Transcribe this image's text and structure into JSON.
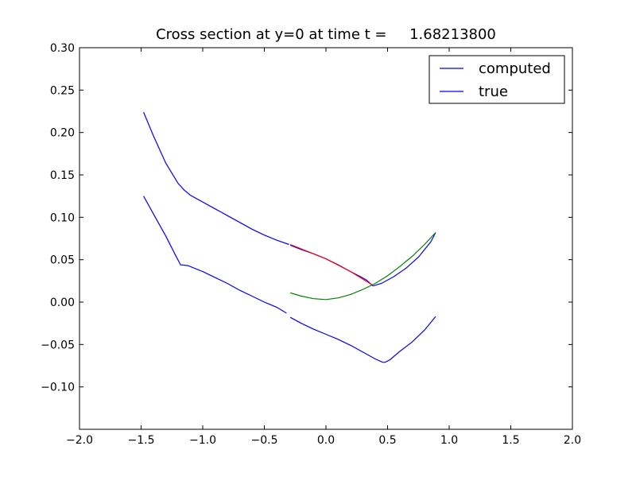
{
  "chart_data": {
    "type": "line",
    "title": "Cross section at y=0 at time t =     1.68213800",
    "xlabel": "",
    "ylabel": "",
    "xlim": [
      -2.0,
      2.0
    ],
    "ylim": [
      -0.15,
      0.3
    ],
    "xticks": [
      "−2.0",
      "−1.5",
      "−1.0",
      "−0.5",
      "0.0",
      "0.5",
      "1.0",
      "1.5",
      "2.0"
    ],
    "xtick_values": [
      -2.0,
      -1.5,
      -1.0,
      -0.5,
      0.0,
      0.5,
      1.0,
      1.5,
      2.0
    ],
    "yticks": [
      "0.30",
      "0.25",
      "0.20",
      "0.15",
      "0.10",
      "0.05",
      "0.00",
      "−0.05",
      "−0.10"
    ],
    "ytick_values": [
      0.3,
      0.25,
      0.2,
      0.15,
      0.1,
      0.05,
      0.0,
      -0.05,
      -0.1
    ],
    "grid": false,
    "legend_position": "top-right",
    "legend": [
      "computed",
      "true"
    ],
    "series": [
      {
        "name": "computed",
        "color": "#0000ff",
        "segments": [
          [
            [
              -1.48,
              0.224
            ],
            [
              -1.4,
              0.196
            ],
            [
              -1.3,
              0.164
            ],
            [
              -1.2,
              0.14
            ],
            [
              -1.15,
              0.132
            ],
            [
              -1.1,
              0.126
            ],
            [
              -1.0,
              0.118
            ],
            [
              -0.9,
              0.11
            ],
            [
              -0.85,
              0.106
            ],
            [
              -0.8,
              0.102
            ],
            [
              -0.7,
              0.094
            ],
            [
              -0.6,
              0.086
            ],
            [
              -0.5,
              0.079
            ],
            [
              -0.4,
              0.073
            ],
            [
              -0.3,
              0.068
            ]
          ],
          [
            [
              -0.29,
              0.067
            ],
            [
              -0.2,
              0.062
            ],
            [
              -0.1,
              0.057
            ],
            [
              0.0,
              0.051
            ],
            [
              0.1,
              0.044
            ],
            [
              0.2,
              0.036
            ],
            [
              0.28,
              0.03
            ],
            [
              0.33,
              0.026
            ],
            [
              0.38,
              0.019
            ]
          ],
          [
            [
              0.38,
              0.019
            ],
            [
              0.45,
              0.022
            ],
            [
              0.55,
              0.03
            ],
            [
              0.65,
              0.04
            ],
            [
              0.75,
              0.053
            ],
            [
              0.85,
              0.071
            ],
            [
              0.89,
              0.082
            ]
          ]
        ]
      },
      {
        "name": "true",
        "color": "#0000ff",
        "segments": [
          [
            [
              -1.48,
              0.125
            ],
            [
              -1.4,
              0.104
            ],
            [
              -1.3,
              0.078
            ],
            [
              -1.22,
              0.055
            ],
            [
              -1.18,
              0.044
            ],
            [
              -1.12,
              0.043
            ],
            [
              -1.0,
              0.036
            ],
            [
              -0.9,
              0.029
            ],
            [
              -0.8,
              0.022
            ],
            [
              -0.7,
              0.014
            ],
            [
              -0.6,
              0.007
            ],
            [
              -0.5,
              0.0
            ],
            [
              -0.4,
              -0.006
            ],
            [
              -0.32,
              -0.013
            ]
          ],
          [
            [
              -0.29,
              -0.018
            ],
            [
              -0.2,
              -0.025
            ],
            [
              -0.1,
              -0.032
            ],
            [
              0.0,
              -0.038
            ],
            [
              0.1,
              -0.044
            ],
            [
              0.2,
              -0.051
            ],
            [
              0.3,
              -0.059
            ],
            [
              0.4,
              -0.067
            ],
            [
              0.46,
              -0.071
            ],
            [
              0.48,
              -0.071
            ],
            [
              0.52,
              -0.068
            ],
            [
              0.6,
              -0.058
            ],
            [
              0.7,
              -0.047
            ],
            [
              0.8,
              -0.033
            ],
            [
              0.89,
              -0.017
            ]
          ]
        ]
      },
      {
        "color": "#ff0000",
        "segments": [
          [
            [
              -0.29,
              0.068
            ],
            [
              0.0,
              0.051
            ],
            [
              0.2,
              0.036
            ],
            [
              0.38,
              0.02
            ]
          ]
        ]
      },
      {
        "color": "#008000",
        "segments": [
          [
            [
              -0.29,
              0.011
            ],
            [
              -0.2,
              0.007
            ],
            [
              -0.1,
              0.004
            ],
            [
              0.0,
              0.003
            ],
            [
              0.1,
              0.005
            ],
            [
              0.2,
              0.009
            ],
            [
              0.3,
              0.015
            ],
            [
              0.4,
              0.022
            ],
            [
              0.5,
              0.031
            ],
            [
              0.6,
              0.042
            ],
            [
              0.7,
              0.054
            ],
            [
              0.8,
              0.068
            ],
            [
              0.89,
              0.082
            ]
          ]
        ]
      }
    ]
  }
}
